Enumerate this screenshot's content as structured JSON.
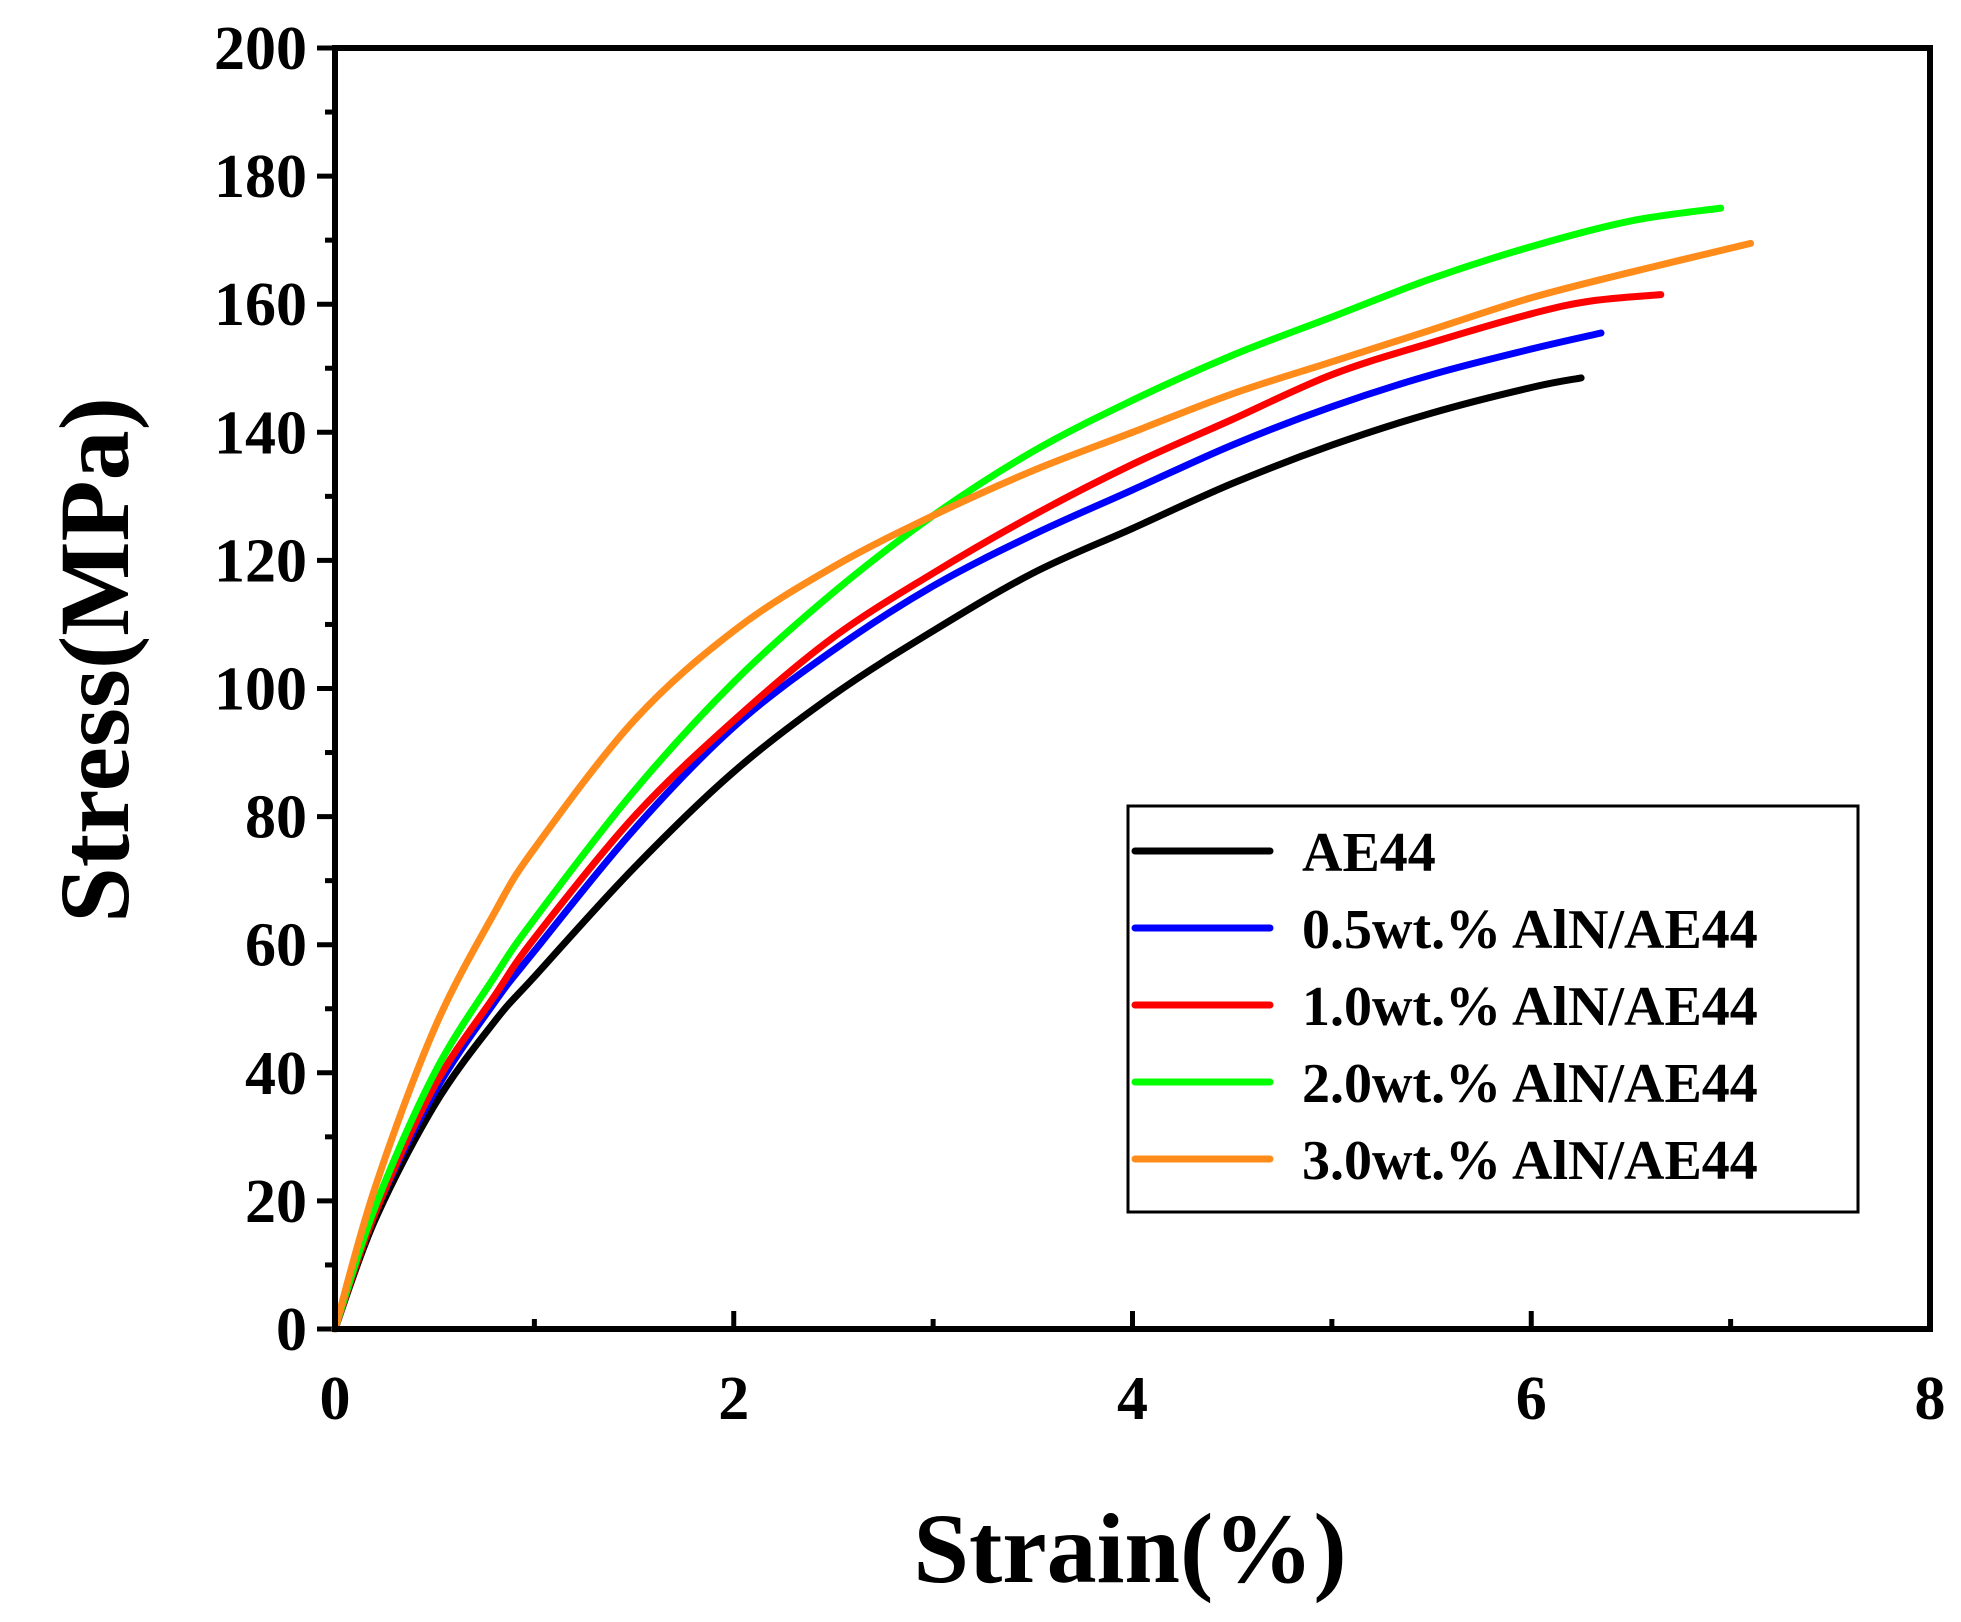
{
  "chart_data": {
    "type": "line",
    "title": "",
    "xlabel": "Strain(%)",
    "ylabel": "Stress(MPa)",
    "xlim": [
      0,
      8
    ],
    "ylim": [
      0,
      200
    ],
    "xticks": [
      0,
      2,
      4,
      6,
      8
    ],
    "yticks": [
      0,
      20,
      40,
      60,
      80,
      100,
      120,
      140,
      160,
      180,
      200
    ],
    "grid": false,
    "legend_position": "lower-right",
    "series": [
      {
        "name": "AE44",
        "color": "#000000",
        "x": [
          0,
          0.2,
          0.5,
          0.8,
          1.0,
          1.5,
          2.0,
          2.5,
          3.0,
          3.5,
          4.0,
          4.5,
          5.0,
          5.5,
          6.0,
          6.25
        ],
        "y": [
          0,
          17,
          35,
          48,
          55,
          72,
          87,
          99,
          109,
          118,
          125,
          132,
          138,
          143,
          147,
          148.5
        ]
      },
      {
        "name": "0.5wt.% AlN/AE44",
        "color": "#0000ff",
        "x": [
          0,
          0.2,
          0.5,
          0.8,
          1.0,
          1.5,
          2.0,
          2.5,
          3.0,
          3.5,
          4.0,
          4.5,
          5.0,
          5.5,
          6.0,
          6.35
        ],
        "y": [
          0,
          18,
          37,
          51,
          59,
          78,
          94,
          106,
          116,
          124,
          131,
          138,
          144,
          149,
          153,
          155.5
        ]
      },
      {
        "name": "1.0wt.% AlN/AE44",
        "color": "#ff0000",
        "x": [
          0,
          0.2,
          0.5,
          0.8,
          1.0,
          1.5,
          2.0,
          2.5,
          3.0,
          3.5,
          4.0,
          4.5,
          5.0,
          5.5,
          6.0,
          6.3,
          6.65
        ],
        "y": [
          0,
          18,
          38,
          52,
          61,
          80,
          95,
          108,
          118,
          127,
          135,
          142,
          149,
          154,
          158.5,
          160.5,
          161.5
        ]
      },
      {
        "name": "2.0wt.% AlN/AE44",
        "color": "#00ff00",
        "x": [
          0,
          0.2,
          0.5,
          0.8,
          1.0,
          1.5,
          2.0,
          2.5,
          3.0,
          3.5,
          4.0,
          4.5,
          5.0,
          5.5,
          6.0,
          6.5,
          6.95
        ],
        "y": [
          0,
          19,
          40,
          55,
          64,
          84,
          101,
          115,
          127,
          137,
          145,
          152,
          158,
          164,
          169,
          173,
          175
        ]
      },
      {
        "name": "3.0wt.% AlN/AE44",
        "color": "#ff8c1a",
        "x": [
          0,
          0.2,
          0.5,
          0.8,
          1.0,
          1.5,
          2.0,
          2.5,
          3.0,
          3.5,
          4.0,
          4.5,
          5.0,
          5.5,
          6.0,
          6.5,
          7.1
        ],
        "y": [
          0,
          22,
          47,
          65,
          75,
          95,
          109,
          119,
          127,
          134,
          140,
          146,
          151,
          156,
          161,
          165,
          169.5
        ]
      }
    ]
  }
}
